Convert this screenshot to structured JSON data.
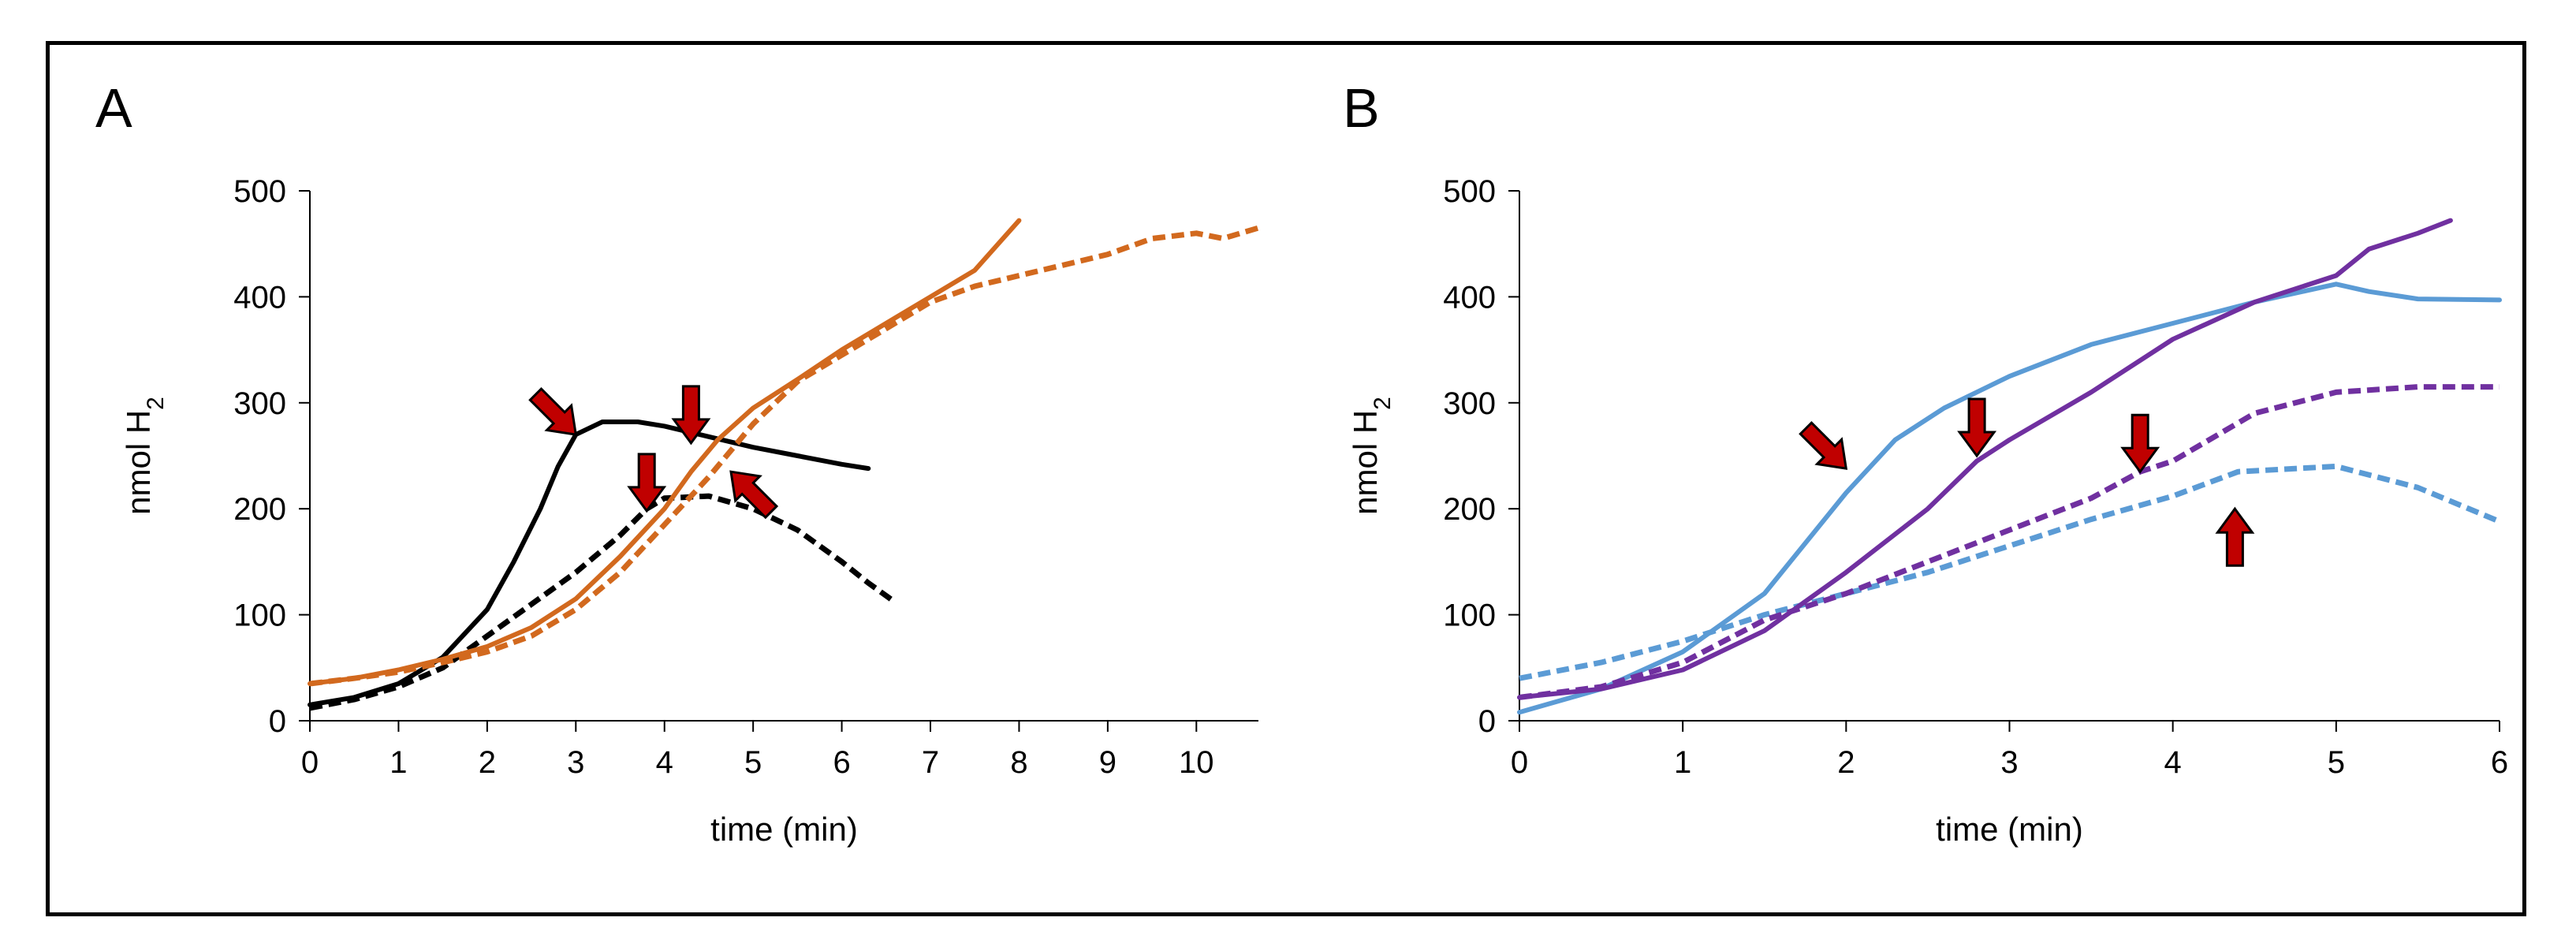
{
  "figure": {
    "panel_labels": [
      "A",
      "B"
    ]
  },
  "chart_data": [
    {
      "type": "line",
      "panel": "A",
      "title": "",
      "xlabel": "time (min)",
      "ylabel": "nmol H",
      "ylabel_subscript": "2",
      "xlim": [
        0,
        10.7
      ],
      "ylim": [
        0,
        500
      ],
      "xticks": [
        0,
        1,
        2,
        3,
        4,
        5,
        6,
        7,
        8,
        9,
        10
      ],
      "yticks": [
        0,
        100,
        200,
        300,
        400,
        500
      ],
      "grid": false,
      "series": [
        {
          "name": "black solid",
          "color": "#000000",
          "dashed": false,
          "points": [
            [
              0,
              15
            ],
            [
              0.5,
              22
            ],
            [
              1,
              35
            ],
            [
              1.5,
              60
            ],
            [
              2,
              105
            ],
            [
              2.3,
              150
            ],
            [
              2.6,
              200
            ],
            [
              2.8,
              240
            ],
            [
              3,
              270
            ],
            [
              3.3,
              282
            ],
            [
              3.7,
              282
            ],
            [
              4,
              278
            ],
            [
              4.5,
              268
            ],
            [
              5,
              258
            ],
            [
              5.5,
              250
            ],
            [
              6,
              242
            ],
            [
              6.3,
              238
            ]
          ]
        },
        {
          "name": "black dashed",
          "color": "#000000",
          "dashed": true,
          "points": [
            [
              0,
              12
            ],
            [
              0.5,
              20
            ],
            [
              1,
              32
            ],
            [
              1.5,
              50
            ],
            [
              2,
              80
            ],
            [
              2.5,
              110
            ],
            [
              3,
              140
            ],
            [
              3.5,
              175
            ],
            [
              3.8,
              200
            ],
            [
              4,
              210
            ],
            [
              4.5,
              212
            ],
            [
              5,
              200
            ],
            [
              5.5,
              180
            ],
            [
              6,
              150
            ],
            [
              6.3,
              130
            ],
            [
              6.6,
              112
            ]
          ]
        },
        {
          "name": "orange solid",
          "color": "#D2691E",
          "dashed": false,
          "points": [
            [
              0,
              35
            ],
            [
              0.5,
              40
            ],
            [
              1,
              48
            ],
            [
              1.5,
              58
            ],
            [
              2,
              70
            ],
            [
              2.5,
              88
            ],
            [
              3,
              115
            ],
            [
              3.5,
              155
            ],
            [
              4,
              200
            ],
            [
              4.3,
              235
            ],
            [
              4.6,
              265
            ],
            [
              5,
              295
            ],
            [
              5.5,
              322
            ],
            [
              6,
              350
            ],
            [
              6.5,
              375
            ],
            [
              7,
              400
            ],
            [
              7.5,
              425
            ],
            [
              8,
              472
            ]
          ]
        },
        {
          "name": "orange dashed",
          "color": "#D2691E",
          "dashed": true,
          "points": [
            [
              0,
              35
            ],
            [
              0.5,
              40
            ],
            [
              1,
              46
            ],
            [
              1.5,
              55
            ],
            [
              2,
              65
            ],
            [
              2.5,
              80
            ],
            [
              3,
              105
            ],
            [
              3.5,
              140
            ],
            [
              4,
              185
            ],
            [
              4.5,
              230
            ],
            [
              5,
              280
            ],
            [
              5.5,
              320
            ],
            [
              6,
              345
            ],
            [
              6.5,
              370
            ],
            [
              7,
              395
            ],
            [
              7.5,
              410
            ],
            [
              8,
              420
            ],
            [
              8.5,
              430
            ],
            [
              9,
              440
            ],
            [
              9.5,
              455
            ],
            [
              10,
              460
            ],
            [
              10.3,
              455
            ],
            [
              10.7,
              465
            ]
          ]
        }
      ],
      "arrows": [
        {
          "at": [
            3.0,
            270
          ],
          "dir": "down-right"
        },
        {
          "at": [
            4.3,
            262
          ],
          "dir": "down"
        },
        {
          "at": [
            3.8,
            198
          ],
          "dir": "down"
        },
        {
          "at": [
            4.75,
            235
          ],
          "dir": "up-left"
        }
      ]
    },
    {
      "type": "line",
      "panel": "B",
      "title": "",
      "xlabel": "time (min)",
      "ylabel": "nmol H",
      "ylabel_subscript": "2",
      "xlim": [
        0,
        6
      ],
      "ylim": [
        0,
        500
      ],
      "xticks": [
        0,
        1,
        2,
        3,
        4,
        5,
        6
      ],
      "yticks": [
        0,
        100,
        200,
        300,
        400,
        500
      ],
      "grid": false,
      "series": [
        {
          "name": "blue solid",
          "color": "#5B9BD5",
          "dashed": false,
          "points": [
            [
              0,
              8
            ],
            [
              0.5,
              30
            ],
            [
              1,
              65
            ],
            [
              1.5,
              120
            ],
            [
              2,
              215
            ],
            [
              2.3,
              265
            ],
            [
              2.6,
              295
            ],
            [
              3,
              325
            ],
            [
              3.5,
              355
            ],
            [
              4,
              375
            ],
            [
              4.5,
              395
            ],
            [
              5,
              412
            ],
            [
              5.2,
              405
            ],
            [
              5.5,
              398
            ],
            [
              6,
              397
            ]
          ]
        },
        {
          "name": "blue dashed",
          "color": "#5B9BD5",
          "dashed": true,
          "points": [
            [
              0,
              40
            ],
            [
              0.5,
              55
            ],
            [
              1,
              75
            ],
            [
              1.5,
              100
            ],
            [
              2,
              120
            ],
            [
              2.5,
              140
            ],
            [
              3,
              165
            ],
            [
              3.5,
              190
            ],
            [
              4,
              212
            ],
            [
              4.4,
              235
            ],
            [
              5,
              240
            ],
            [
              5.5,
              220
            ],
            [
              6,
              188
            ]
          ]
        },
        {
          "name": "purple solid",
          "color": "#7030A0",
          "dashed": false,
          "points": [
            [
              0,
              22
            ],
            [
              0.5,
              30
            ],
            [
              1,
              48
            ],
            [
              1.5,
              85
            ],
            [
              2,
              140
            ],
            [
              2.5,
              200
            ],
            [
              2.8,
              245
            ],
            [
              3,
              265
            ],
            [
              3.5,
              310
            ],
            [
              4,
              360
            ],
            [
              4.5,
              395
            ],
            [
              5,
              420
            ],
            [
              5.2,
              445
            ],
            [
              5.5,
              460
            ],
            [
              5.7,
              472
            ]
          ]
        },
        {
          "name": "purple dashed",
          "color": "#7030A0",
          "dashed": true,
          "points": [
            [
              0,
              22
            ],
            [
              0.5,
              32
            ],
            [
              1,
              55
            ],
            [
              1.5,
              95
            ],
            [
              2,
              120
            ],
            [
              2.5,
              150
            ],
            [
              3,
              180
            ],
            [
              3.5,
              210
            ],
            [
              3.8,
              235
            ],
            [
              4,
              245
            ],
            [
              4.5,
              290
            ],
            [
              5,
              310
            ],
            [
              5.5,
              315
            ],
            [
              6,
              315
            ]
          ]
        }
      ],
      "arrows": [
        {
          "at": [
            2.0,
            238
          ],
          "dir": "down-right"
        },
        {
          "at": [
            2.8,
            250
          ],
          "dir": "down"
        },
        {
          "at": [
            3.8,
            235
          ],
          "dir": "down"
        },
        {
          "at": [
            4.38,
            200
          ],
          "dir": "up"
        }
      ]
    }
  ]
}
